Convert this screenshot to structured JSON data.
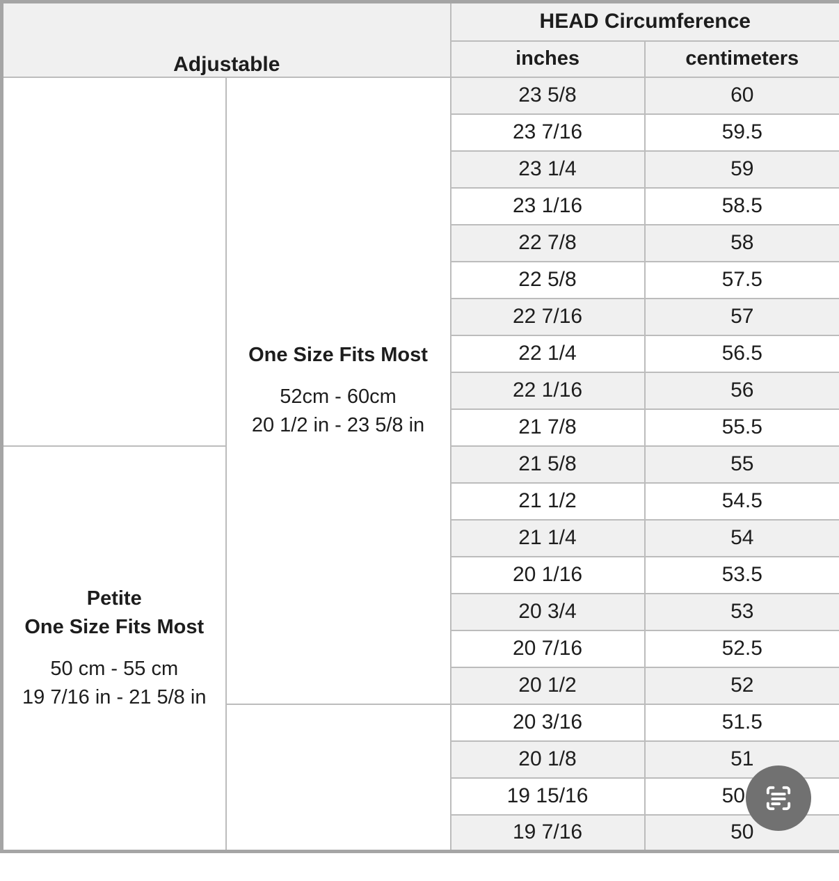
{
  "table": {
    "header": {
      "adjustable_label": "Adjustable",
      "head_circumference_label": "HEAD Circumference",
      "inches_label": "inches",
      "centimeters_label": "centimeters"
    },
    "groups": {
      "one_size": {
        "title": "One Size Fits Most",
        "range_cm": "52cm - 60cm",
        "range_in": "20 1/2 in - 23 5/8 in"
      },
      "petite": {
        "title_line1": "Petite",
        "title_line2": "One Size Fits Most",
        "range_cm": "50 cm - 55 cm",
        "range_in": "19 7/16 in - 21 5/8 in"
      }
    },
    "rows": [
      {
        "inches": "23 5/8",
        "cm": "60"
      },
      {
        "inches": "23 7/16",
        "cm": "59.5"
      },
      {
        "inches": "23 1/4",
        "cm": "59"
      },
      {
        "inches": "23 1/16",
        "cm": "58.5"
      },
      {
        "inches": "22 7/8",
        "cm": "58"
      },
      {
        "inches": "22 5/8",
        "cm": "57.5"
      },
      {
        "inches": "22 7/16",
        "cm": "57"
      },
      {
        "inches": "22 1/4",
        "cm": "56.5"
      },
      {
        "inches": "22 1/16",
        "cm": "56"
      },
      {
        "inches": "21 7/8",
        "cm": "55.5"
      },
      {
        "inches": "21 5/8",
        "cm": "55"
      },
      {
        "inches": "21 1/2",
        "cm": "54.5"
      },
      {
        "inches": "21 1/4",
        "cm": "54"
      },
      {
        "inches": "20 1/16",
        "cm": "53.5"
      },
      {
        "inches": "20 3/4",
        "cm": "53"
      },
      {
        "inches": "20 7/16",
        "cm": "52.5"
      },
      {
        "inches": "20 1/2",
        "cm": "52"
      },
      {
        "inches": "20 3/16",
        "cm": "51.5"
      },
      {
        "inches": "20 1/8",
        "cm": "51"
      },
      {
        "inches": "19 15/16",
        "cm": "50.5"
      },
      {
        "inches": "19 7/16",
        "cm": "50"
      }
    ],
    "layout": {
      "one_size_cell_row_span": 17,
      "petite_cell_starts_at_row": 11,
      "petite_cell_row_span": 11,
      "empty_left_cell_row_span": 10,
      "empty_right_cell_row_span": 4
    }
  },
  "floating_button": {
    "icon": "scan-text-icon",
    "bg_color": "#717171",
    "icon_color": "#ffffff"
  },
  "colors": {
    "stripe": "#f0f0f0",
    "header_bg": "#f0f0f0",
    "grid_line": "#bcbcbc",
    "outer_border": "#a5a5a5",
    "header_rule": "#9e9e9e",
    "text": "#1d1d1d",
    "page_bg": "#ffffff"
  },
  "chart_data": {
    "type": "table",
    "title": "HEAD Circumference",
    "columns": [
      "inches",
      "centimeters"
    ],
    "rows": [
      [
        "23 5/8",
        60
      ],
      [
        "23 7/16",
        59.5
      ],
      [
        "23 1/4",
        59
      ],
      [
        "23 1/16",
        58.5
      ],
      [
        "22 7/8",
        58
      ],
      [
        "22 5/8",
        57.5
      ],
      [
        "22 7/16",
        57
      ],
      [
        "22 1/4",
        56.5
      ],
      [
        "22 1/16",
        56
      ],
      [
        "21 7/8",
        55.5
      ],
      [
        "21 5/8",
        55
      ],
      [
        "21 1/2",
        54.5
      ],
      [
        "21 1/4",
        54
      ],
      [
        "20 1/16",
        53.5
      ],
      [
        "20 3/4",
        53
      ],
      [
        "20 7/16",
        52.5
      ],
      [
        "20 1/2",
        52
      ],
      [
        "20 3/16",
        51.5
      ],
      [
        "20 1/8",
        51
      ],
      [
        "19 15/16",
        50.5
      ],
      [
        "19 7/16",
        50
      ]
    ],
    "groups": [
      {
        "label": "One Size Fits Most",
        "range_cm": "52cm - 60cm",
        "range_in": "20 1/2 in - 23 5/8 in",
        "covers_cm_rows": [
          60,
          52
        ]
      },
      {
        "label": "Petite One Size Fits Most",
        "range_cm": "50 cm - 55 cm",
        "range_in": "19 7/16 in - 21 5/8 in",
        "covers_cm_rows": [
          55,
          50
        ]
      }
    ],
    "legend_position": "none",
    "grid": true
  }
}
